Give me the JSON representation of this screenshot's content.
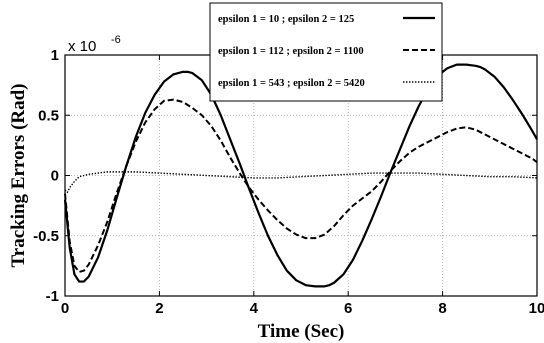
{
  "chart_data": {
    "type": "line",
    "xlabel": "Time (Sec)",
    "ylabel": "Tracking Errors (Rad)",
    "y_multiplier_label": {
      "base": "x 10",
      "exponent": "-6"
    },
    "xlim": [
      0,
      10
    ],
    "ylim": [
      -1,
      1
    ],
    "x_ticks": [
      0,
      2,
      4,
      6,
      8,
      10
    ],
    "x_tick_labels": [
      "0",
      "2",
      "4",
      "6",
      "8",
      "10"
    ],
    "y_ticks": [
      -1,
      -0.5,
      0,
      0.5,
      1
    ],
    "y_tick_labels": [
      "-1",
      "-0.5",
      "0",
      "0.5",
      "1"
    ],
    "grid": true,
    "legend_position": "top-right",
    "series": [
      {
        "name": "epsilon 1 = 10   ;  epsilon 2 = 125",
        "style": "solid",
        "x": [
          0,
          0.1,
          0.2,
          0.3,
          0.4,
          0.5,
          0.7,
          0.9,
          1.1,
          1.3,
          1.5,
          1.7,
          1.9,
          2.1,
          2.3,
          2.5,
          2.6,
          2.7,
          2.9,
          3.1,
          3.3,
          3.5,
          3.7,
          3.9,
          4.1,
          4.3,
          4.5,
          4.7,
          4.9,
          5.1,
          5.3,
          5.5,
          5.6,
          5.7,
          5.9,
          6.1,
          6.3,
          6.5,
          6.7,
          6.9,
          7.1,
          7.3,
          7.5,
          7.7,
          7.9,
          8.1,
          8.3,
          8.5,
          8.7,
          8.8,
          8.9,
          9.1,
          9.3,
          9.5,
          9.7,
          9.9,
          10
        ],
        "y": [
          -0.2,
          -0.6,
          -0.82,
          -0.88,
          -0.88,
          -0.84,
          -0.68,
          -0.45,
          -0.18,
          0.08,
          0.32,
          0.52,
          0.67,
          0.78,
          0.84,
          0.86,
          0.86,
          0.85,
          0.79,
          0.67,
          0.5,
          0.3,
          0.1,
          -0.11,
          -0.31,
          -0.5,
          -0.66,
          -0.79,
          -0.87,
          -0.91,
          -0.92,
          -0.92,
          -0.91,
          -0.89,
          -0.82,
          -0.7,
          -0.54,
          -0.36,
          -0.17,
          0.03,
          0.22,
          0.41,
          0.58,
          0.72,
          0.83,
          0.89,
          0.92,
          0.92,
          0.91,
          0.9,
          0.88,
          0.82,
          0.73,
          0.62,
          0.5,
          0.37,
          0.3
        ]
      },
      {
        "name": "epsilon 1 = 112  ;  epsilon 2 = 1100",
        "style": "dashed",
        "x": [
          0,
          0.1,
          0.2,
          0.3,
          0.4,
          0.5,
          0.7,
          0.9,
          1.1,
          1.3,
          1.5,
          1.7,
          1.9,
          2.1,
          2.3,
          2.5,
          2.7,
          2.9,
          3.1,
          3.3,
          3.5,
          3.7,
          3.9,
          4.1,
          4.3,
          4.5,
          4.7,
          4.9,
          5.1,
          5.3,
          5.5,
          5.7,
          5.9,
          6.1,
          6.3,
          6.5,
          6.7,
          6.9,
          7.1,
          7.3,
          7.5,
          7.7,
          7.9,
          8.1,
          8.3,
          8.5,
          8.7,
          8.9,
          9.1,
          9.3,
          9.5,
          9.7,
          9.9,
          10
        ],
        "y": [
          -0.15,
          -0.55,
          -0.75,
          -0.8,
          -0.79,
          -0.74,
          -0.58,
          -0.38,
          -0.14,
          0.08,
          0.28,
          0.44,
          0.55,
          0.62,
          0.63,
          0.61,
          0.56,
          0.5,
          0.41,
          0.29,
          0.15,
          0.02,
          -0.1,
          -0.2,
          -0.29,
          -0.37,
          -0.44,
          -0.49,
          -0.52,
          -0.52,
          -0.49,
          -0.42,
          -0.33,
          -0.25,
          -0.19,
          -0.13,
          -0.05,
          0.04,
          0.12,
          0.19,
          0.24,
          0.28,
          0.32,
          0.36,
          0.39,
          0.4,
          0.38,
          0.34,
          0.3,
          0.26,
          0.22,
          0.18,
          0.14,
          0.11
        ]
      },
      {
        "name": "epsilon 1 = 543  ;  epsilon 2 = 5420",
        "style": "dotted",
        "x": [
          0,
          0.05,
          0.1,
          0.2,
          0.3,
          0.5,
          0.7,
          0.9,
          1.1,
          1.3,
          1.5,
          2,
          2.5,
          3,
          3.5,
          4,
          4.5,
          5,
          5.5,
          6,
          6.5,
          7,
          7.5,
          8,
          8.5,
          9,
          9.5,
          10
        ],
        "y": [
          -0.12,
          -0.14,
          -0.1,
          -0.05,
          -0.01,
          0.01,
          0.02,
          0.03,
          0.03,
          0.03,
          0.03,
          0.02,
          0.01,
          0.0,
          -0.01,
          -0.02,
          -0.02,
          -0.01,
          0.0,
          0.01,
          0.02,
          0.02,
          0.02,
          0.01,
          0.0,
          -0.01,
          -0.01,
          -0.02
        ]
      }
    ]
  }
}
